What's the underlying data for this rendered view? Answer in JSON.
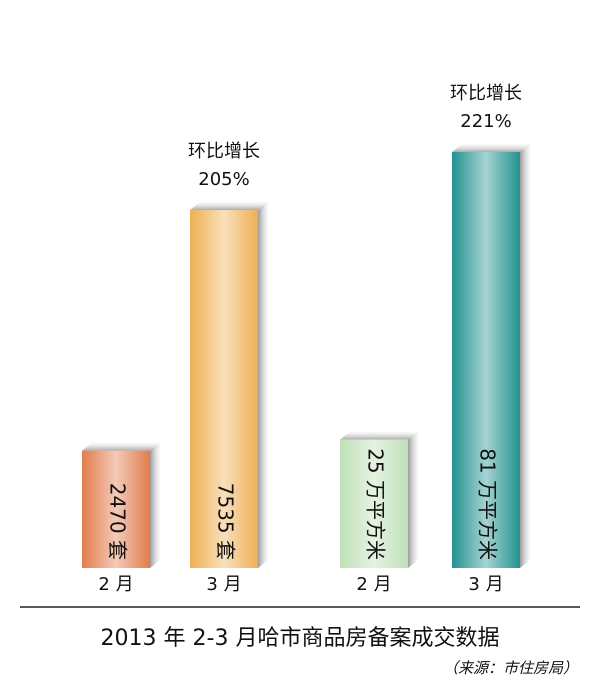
{
  "title": "2013 年 2-3 月哈市商品房备案成交数据",
  "source": "（来源：市住房局）",
  "chart_data": [
    {
      "type": "bar",
      "categories": [
        "2 月",
        "3 月"
      ],
      "values": [
        2470,
        7535
      ],
      "value_labels": [
        "2470 套",
        "7535 套"
      ],
      "colors": [
        "#e27c4c",
        "#eeb055"
      ],
      "annotation": {
        "text": "环比增长",
        "value": 205,
        "value_label": "205%"
      }
    },
    {
      "type": "bar",
      "categories": [
        "2 月",
        "3 月"
      ],
      "values": [
        25,
        81
      ],
      "value_labels": [
        "25 万平方米",
        "81 万平方米"
      ],
      "colors": [
        "#bfe0b8",
        "#21928f"
      ],
      "annotation": {
        "text": "环比增长",
        "value": 221,
        "value_label": "221%"
      }
    }
  ]
}
